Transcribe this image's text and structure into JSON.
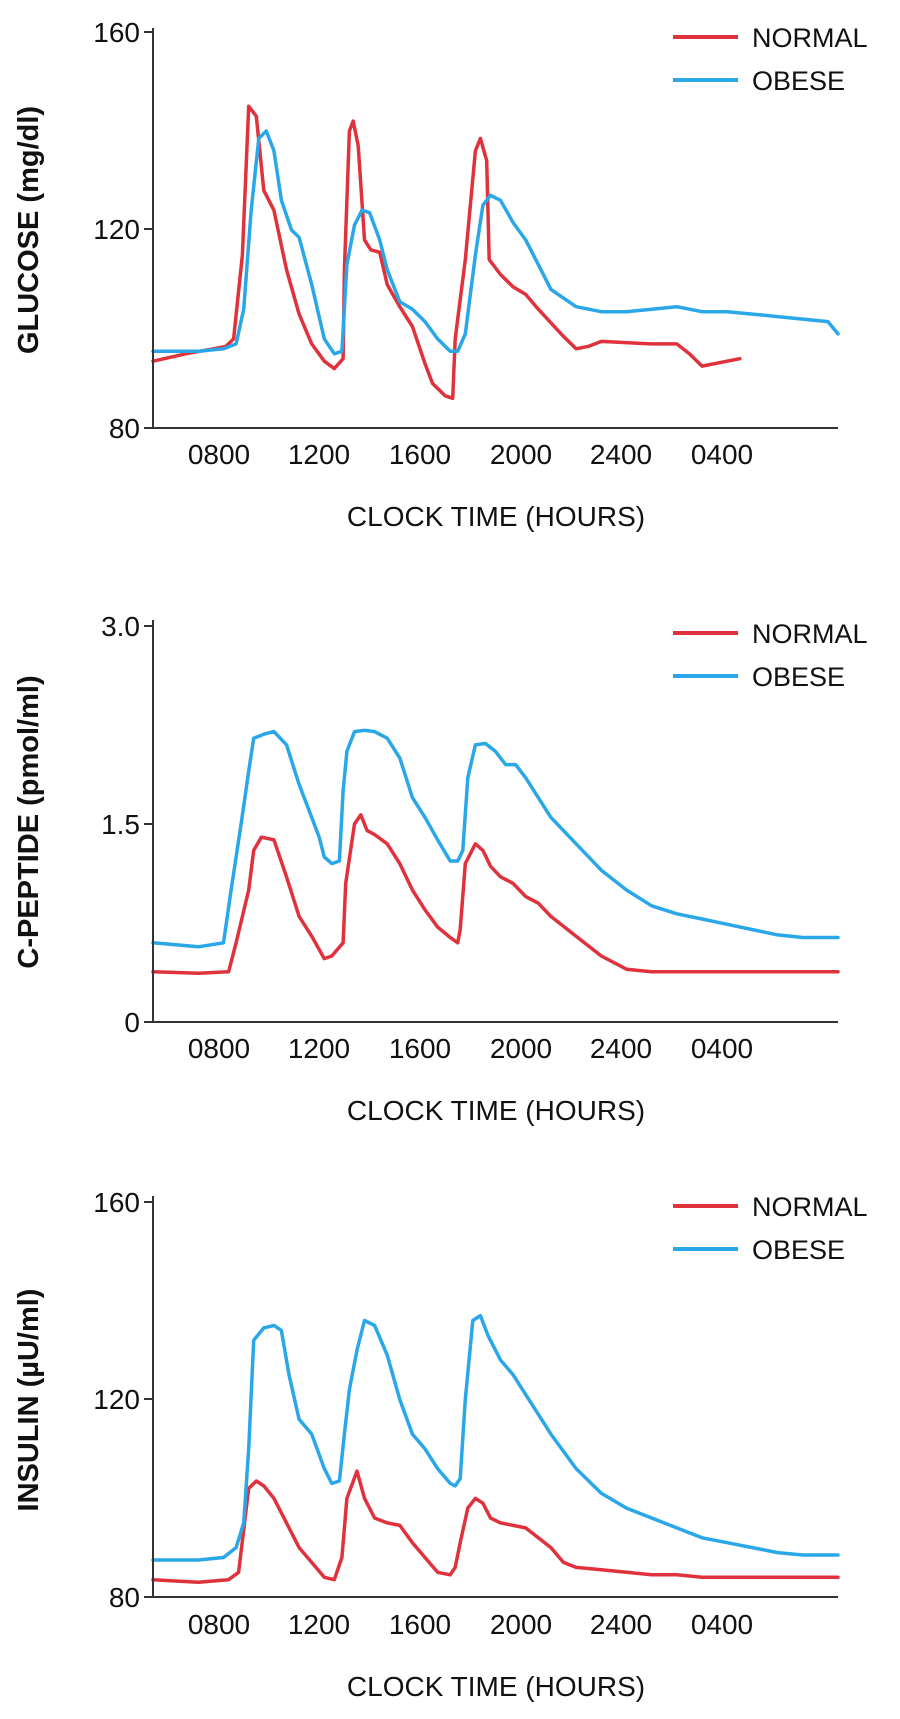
{
  "colors": {
    "normal": "#e0323c",
    "obese": "#2aa7e8",
    "axis": "#333333"
  },
  "chart_data": [
    {
      "type": "line",
      "title": "",
      "xlabel": "CLOCK TIME (HOURS)",
      "ylabel": "GLUCOSE (mg/dl)",
      "x_tick_labels": [
        "0800",
        "1200",
        "1600",
        "2000",
        "2400",
        "0400"
      ],
      "y_tick_labels": [
        "80",
        "120",
        "160"
      ],
      "xlim": [
        6.2,
        33.4
      ],
      "ylim": [
        80,
        160
      ],
      "grid": false,
      "legend_position": "top-right",
      "x_unit": "hours (clock time, 24+ = after midnight)",
      "series": [
        {
          "name": "NORMAL",
          "color_key": "normal",
          "x": [
            6.2,
            7.5,
            8.6,
            9.1,
            9.4,
            9.75,
            10.0,
            10.3,
            10.6,
            11.0,
            11.5,
            12.0,
            12.5,
            13.0,
            13.4,
            13.75,
            13.8,
            14.0,
            14.15,
            14.35,
            14.6,
            14.85,
            15.2,
            15.5,
            16.0,
            16.5,
            17.0,
            17.3,
            17.8,
            18.1,
            18.2,
            18.6,
            19.0,
            19.2,
            19.45,
            19.55,
            19.7,
            20.0,
            20.5,
            21.0,
            21.5,
            22.5,
            23.0,
            23.5,
            24.0,
            26.0,
            27.0,
            27.5,
            28.0,
            29.5
          ],
          "values": [
            93.5,
            95,
            96,
            96.5,
            98,
            115,
            145,
            143,
            128,
            124,
            112,
            103,
            97,
            93.5,
            92,
            94,
            112,
            140,
            142,
            137,
            118,
            116,
            115.5,
            109,
            104.5,
            100.5,
            93,
            89,
            86.5,
            86,
            98,
            114,
            136,
            138.5,
            134,
            114,
            113,
            111,
            108.5,
            107,
            104,
            98.5,
            96,
            96.5,
            97.5,
            97,
            97,
            95,
            92.5,
            94
          ]
        },
        {
          "name": "OBESE",
          "color_key": "obese",
          "x": [
            6.2,
            8.0,
            9.0,
            9.5,
            9.8,
            10.1,
            10.4,
            10.7,
            11.0,
            11.3,
            11.7,
            12.0,
            12.5,
            13.0,
            13.4,
            13.7,
            13.9,
            14.2,
            14.5,
            14.8,
            15.2,
            15.5,
            16.0,
            16.5,
            17.0,
            17.5,
            18.0,
            18.3,
            18.6,
            19.0,
            19.3,
            19.6,
            20.0,
            20.5,
            21.0,
            21.5,
            22.0,
            23.0,
            24.0,
            25.0,
            26.0,
            27.0,
            28.0,
            29.0,
            30.0,
            31.0,
            32.0,
            33.0,
            33.4
          ],
          "values": [
            95.5,
            95.5,
            96,
            97,
            104,
            124,
            138.5,
            140,
            136,
            126,
            120,
            118.5,
            109,
            98,
            95,
            95.5,
            113,
            121,
            124,
            123.5,
            118,
            112,
            105.5,
            104,
            101.5,
            98,
            95.5,
            95.5,
            99,
            115,
            125,
            127,
            126,
            121.5,
            118,
            113,
            108,
            104.5,
            103.5,
            103.5,
            104,
            104.5,
            103.5,
            103.5,
            103,
            102.5,
            102,
            101.5,
            99
          ]
        }
      ]
    },
    {
      "type": "line",
      "title": "",
      "xlabel": "CLOCK TIME (HOURS)",
      "ylabel": "C-PEPTIDE (pmol/ml)",
      "x_tick_labels": [
        "0800",
        "1200",
        "1600",
        "2000",
        "2400",
        "0400"
      ],
      "y_tick_labels": [
        "0",
        "1.5",
        "3.0"
      ],
      "xlim": [
        6.2,
        33.4
      ],
      "ylim": [
        0,
        3.0
      ],
      "grid": false,
      "legend_position": "top-right",
      "x_unit": "hours (clock time, 24+ = after midnight)",
      "series": [
        {
          "name": "NORMAL",
          "color_key": "normal",
          "x": [
            6.2,
            8.0,
            9.2,
            9.5,
            10.0,
            10.2,
            10.5,
            11.0,
            11.5,
            12.0,
            12.5,
            13.0,
            13.3,
            13.75,
            13.85,
            14.2,
            14.45,
            14.7,
            15.0,
            15.5,
            16.0,
            16.5,
            17.0,
            17.5,
            18.0,
            18.3,
            18.4,
            18.6,
            19.0,
            19.3,
            19.6,
            20.0,
            20.5,
            21.0,
            21.5,
            22.0,
            23.0,
            24.0,
            25.0,
            26.0,
            27.0,
            28.0,
            29.0,
            30.0,
            31.0,
            32.0,
            33.4
          ],
          "values": [
            0.38,
            0.37,
            0.38,
            0.6,
            1.0,
            1.3,
            1.4,
            1.38,
            1.1,
            0.8,
            0.65,
            0.48,
            0.5,
            0.6,
            1.05,
            1.5,
            1.57,
            1.45,
            1.42,
            1.35,
            1.2,
            1.0,
            0.85,
            0.72,
            0.64,
            0.6,
            0.7,
            1.2,
            1.35,
            1.3,
            1.18,
            1.1,
            1.05,
            0.95,
            0.9,
            0.8,
            0.65,
            0.5,
            0.4,
            0.38,
            0.38,
            0.38,
            0.38,
            0.38,
            0.38,
            0.38,
            0.38
          ]
        },
        {
          "name": "OBESE",
          "color_key": "obese",
          "x": [
            6.2,
            8.0,
            9.0,
            9.3,
            9.7,
            10.0,
            10.2,
            10.6,
            11.0,
            11.5,
            12.0,
            12.5,
            12.8,
            13.0,
            13.3,
            13.6,
            13.75,
            13.9,
            14.2,
            14.6,
            15.0,
            15.5,
            16.0,
            16.5,
            17.0,
            17.5,
            18.0,
            18.3,
            18.5,
            18.7,
            19.0,
            19.4,
            19.8,
            20.2,
            20.6,
            21.0,
            22.0,
            23.0,
            24.0,
            25.0,
            26.0,
            27.0,
            28.0,
            29.0,
            30.0,
            31.0,
            32.0,
            33.4
          ],
          "values": [
            0.6,
            0.57,
            0.6,
            1.0,
            1.5,
            1.9,
            2.15,
            2.18,
            2.2,
            2.1,
            1.8,
            1.55,
            1.4,
            1.25,
            1.2,
            1.22,
            1.75,
            2.05,
            2.2,
            2.21,
            2.2,
            2.15,
            2.0,
            1.7,
            1.55,
            1.38,
            1.22,
            1.22,
            1.3,
            1.85,
            2.1,
            2.11,
            2.05,
            1.95,
            1.95,
            1.85,
            1.55,
            1.35,
            1.15,
            1.0,
            0.88,
            0.82,
            0.78,
            0.74,
            0.7,
            0.66,
            0.64,
            0.64
          ]
        }
      ]
    },
    {
      "type": "line",
      "title": "",
      "xlabel": "CLOCK TIME (HOURS)",
      "ylabel": "INSULIN (µU/ml)",
      "x_tick_labels": [
        "0800",
        "1200",
        "1600",
        "2000",
        "2400",
        "0400"
      ],
      "y_tick_labels": [
        "80",
        "120",
        "160"
      ],
      "xlim": [
        6.2,
        33.4
      ],
      "ylim": [
        80,
        160
      ],
      "grid": false,
      "legend_position": "top-right",
      "x_unit": "hours (clock time, 24+ = after midnight)",
      "series": [
        {
          "name": "NORMAL",
          "color_key": "normal",
          "x": [
            6.2,
            8.0,
            9.2,
            9.6,
            10.0,
            10.3,
            10.6,
            11.0,
            11.5,
            12.0,
            12.5,
            13.0,
            13.4,
            13.7,
            13.9,
            14.3,
            14.6,
            15.0,
            15.5,
            16.0,
            16.5,
            17.0,
            17.5,
            18.0,
            18.2,
            18.4,
            18.7,
            19.0,
            19.3,
            19.6,
            20.0,
            20.5,
            21.0,
            21.5,
            22.0,
            22.5,
            23.0,
            24.0,
            25.0,
            26.0,
            27.0,
            28.0,
            30.0,
            33.4
          ],
          "values": [
            83.5,
            83,
            83.5,
            85,
            102,
            103.5,
            102.5,
            100,
            95,
            90,
            87,
            84,
            83.5,
            88,
            100,
            105.5,
            100,
            96,
            95,
            94.5,
            91,
            88,
            85,
            84.5,
            86,
            91,
            98,
            100,
            99,
            96,
            95,
            94.5,
            94,
            92,
            90,
            87,
            86,
            85.5,
            85,
            84.5,
            84.5,
            84,
            84,
            84
          ]
        },
        {
          "name": "OBESE",
          "color_key": "obese",
          "x": [
            6.2,
            8.0,
            9.0,
            9.5,
            9.8,
            10.0,
            10.2,
            10.6,
            11.0,
            11.3,
            11.6,
            12.0,
            12.5,
            13.0,
            13.3,
            13.6,
            13.8,
            14.0,
            14.3,
            14.6,
            15.0,
            15.5,
            16.0,
            16.5,
            17.0,
            17.5,
            18.0,
            18.2,
            18.4,
            18.6,
            18.9,
            19.2,
            19.5,
            20.0,
            20.5,
            21.0,
            21.5,
            22.0,
            23.0,
            24.0,
            25.0,
            26.0,
            27.0,
            28.0,
            29.0,
            30.0,
            31.0,
            32.0,
            33.4
          ],
          "values": [
            87.5,
            87.5,
            88,
            90,
            95,
            110,
            132,
            134.5,
            135,
            134,
            125,
            116,
            113,
            106,
            103,
            103.5,
            113,
            122,
            130,
            136,
            135,
            129,
            120,
            113,
            110,
            106,
            103,
            102.5,
            104,
            120,
            136,
            137,
            133,
            128,
            125,
            121,
            117,
            113,
            106,
            101,
            98,
            96,
            94,
            92,
            91,
            90,
            89,
            88.5,
            88.5
          ]
        }
      ]
    }
  ],
  "legend": {
    "normal_label": "NORMAL",
    "obese_label": "OBESE"
  }
}
